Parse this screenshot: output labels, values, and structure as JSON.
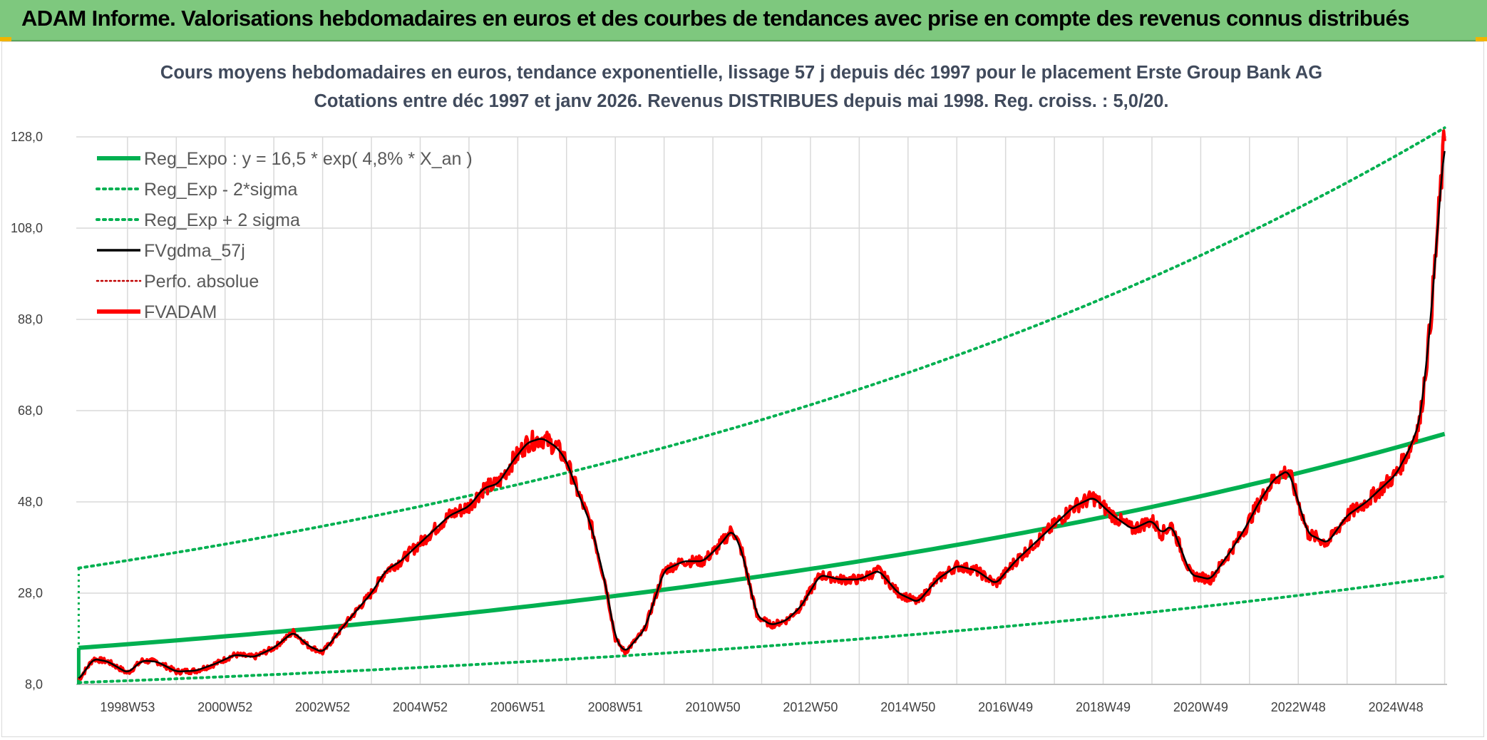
{
  "header": {
    "title": "ADAM Informe. Valorisations hebdomadaires en euros et des courbes de tendances avec prise en compte des revenus connus distribués"
  },
  "colors": {
    "banner": "#7ec87e",
    "reg_expo": "#00b050",
    "fvgdma": "#000000",
    "fvadam": "#ff0000",
    "perfo": "#c00000",
    "grid": "#d9d9d9"
  },
  "chart_data": {
    "type": "line",
    "title_line1": "Cours moyens hebdomadaires en euros, tendance exponentielle, lissage 57 j depuis déc 1997 pour le placement Erste Group Bank AG",
    "title_line2": "Cotations entre déc 1997 et janv 2026. Revenus DISTRIBUES depuis mai 1998. Reg. croiss. : 5,0/20.",
    "x_range": [
      1997.95,
      2026.05
    ],
    "ylim": [
      8,
      128
    ],
    "y_ticks": [
      "8,0",
      "28,0",
      "48,0",
      "68,0",
      "88,0",
      "108,0",
      "128,0"
    ],
    "y_tick_values": [
      8,
      28,
      48,
      68,
      88,
      108,
      128
    ],
    "x_ticks": [
      {
        "label": "1998W53",
        "t": 1999.0
      },
      {
        "label": "2000W52",
        "t": 2001.0
      },
      {
        "label": "2002W52",
        "t": 2003.0
      },
      {
        "label": "2004W52",
        "t": 2005.0
      },
      {
        "label": "2006W51",
        "t": 2007.0
      },
      {
        "label": "2008W51",
        "t": 2009.0
      },
      {
        "label": "2010W50",
        "t": 2011.0
      },
      {
        "label": "2012W50",
        "t": 2013.0
      },
      {
        "label": "2014W50",
        "t": 2015.0
      },
      {
        "label": "2016W49",
        "t": 2017.0
      },
      {
        "label": "2018W49",
        "t": 2019.0
      },
      {
        "label": "2020W49",
        "t": 2021.0
      },
      {
        "label": "2022W48",
        "t": 2023.0
      },
      {
        "label": "2024W48",
        "t": 2025.0
      }
    ],
    "legend": [
      {
        "label": "Reg_Expo : y = 16,5 * exp( 4,8% *  X_an )",
        "style": "solid-thick",
        "color": "#00b050"
      },
      {
        "label": "Reg_Exp - 2*sigma",
        "style": "dotted",
        "color": "#00b050"
      },
      {
        "label": "Reg_Exp + 2 sigma",
        "style": "dotted",
        "color": "#00b050"
      },
      {
        "label": "FVgdma_57j",
        "style": "solid",
        "color": "#000000"
      },
      {
        "label": "Perfo. absolue",
        "style": "dotted-thin",
        "color": "#c00000"
      },
      {
        "label": "FVADAM",
        "style": "solid-thick",
        "color": "#ff0000"
      }
    ],
    "series": [
      {
        "name": "Reg_Expo",
        "x": [
          1998.0,
          2026.0
        ],
        "values": [
          16.0,
          62.9
        ]
      },
      {
        "name": "Reg_Exp - 2*sigma",
        "x": [
          1998.0,
          2026.0
        ],
        "values": [
          8.4,
          31.7
        ]
      },
      {
        "name": "Reg_Exp + 2 sigma",
        "x": [
          1998.0,
          2026.0
        ],
        "values": [
          33.5,
          130.0
        ]
      },
      {
        "name": "FVADAM",
        "x": [
          1998.0,
          1998.3,
          1998.6,
          1999.0,
          1999.3,
          1999.6,
          2000.0,
          2000.4,
          2000.8,
          2001.2,
          2001.6,
          2002.0,
          2002.4,
          2002.7,
          2003.0,
          2003.3,
          2003.6,
          2004.0,
          2004.3,
          2004.6,
          2005.0,
          2005.3,
          2005.6,
          2006.0,
          2006.3,
          2006.6,
          2006.9,
          2007.2,
          2007.5,
          2007.8,
          2008.0,
          2008.2,
          2008.5,
          2008.8,
          2009.0,
          2009.2,
          2009.6,
          2010.0,
          2010.4,
          2010.8,
          2011.1,
          2011.4,
          2011.6,
          2011.9,
          2012.2,
          2012.5,
          2012.8,
          2013.2,
          2013.6,
          2014.0,
          2014.4,
          2014.8,
          2015.2,
          2015.6,
          2016.0,
          2016.4,
          2016.8,
          2017.2,
          2017.6,
          2018.0,
          2018.4,
          2018.8,
          2019.2,
          2019.6,
          2020.0,
          2020.2,
          2020.4,
          2020.8,
          2021.2,
          2021.6,
          2021.9,
          2022.2,
          2022.5,
          2022.8,
          2023.2,
          2023.6,
          2024.0,
          2024.4,
          2024.7,
          2025.0,
          2025.3,
          2025.5,
          2025.7,
          2026.0
        ],
        "values": [
          9.0,
          13.6,
          13.0,
          10.5,
          13.2,
          13.0,
          10.8,
          11.0,
          12.5,
          14.5,
          14.0,
          16.0,
          19.5,
          16.5,
          15.0,
          19.0,
          23.0,
          28.0,
          33.0,
          35.0,
          39.0,
          42.0,
          45.0,
          47.0,
          51.0,
          52.0,
          57.0,
          61.0,
          62.0,
          60.0,
          57.0,
          51.0,
          43.0,
          30.0,
          18.0,
          15.0,
          20.0,
          33.0,
          35.0,
          35.0,
          38.0,
          42.0,
          37.0,
          23.0,
          21.0,
          22.0,
          25.0,
          32.0,
          31.0,
          31.0,
          33.0,
          28.0,
          26.0,
          31.0,
          34.0,
          33.0,
          30.0,
          35.0,
          39.0,
          43.0,
          47.0,
          49.0,
          45.0,
          42.0,
          44.0,
          41.0,
          43.0,
          32.0,
          31.0,
          37.0,
          42.0,
          48.0,
          53.0,
          55.0,
          41.0,
          39.0,
          45.0,
          48.0,
          51.0,
          54.0,
          60.0,
          66.0,
          86.0,
          128.0
        ]
      }
    ]
  }
}
